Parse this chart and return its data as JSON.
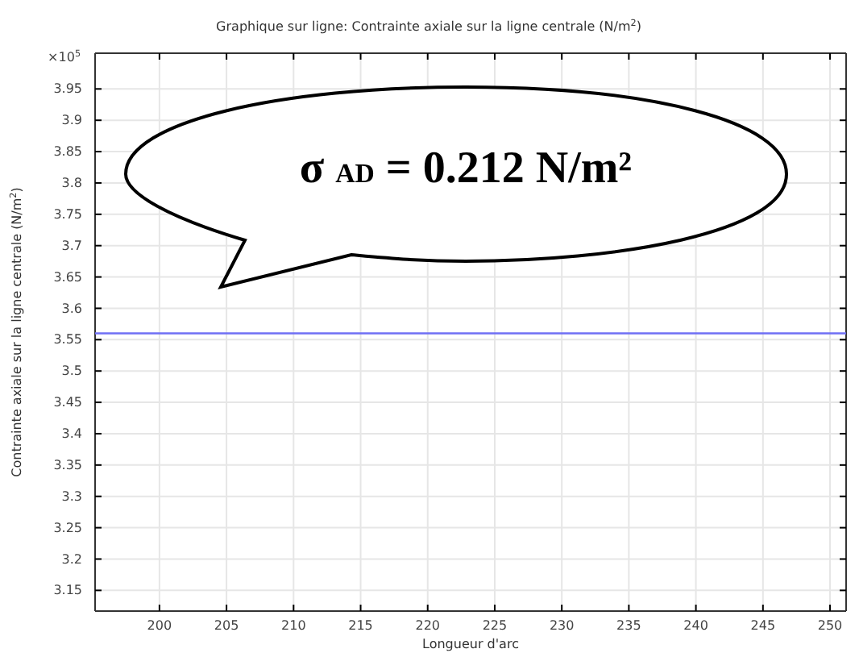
{
  "chart_data": {
    "type": "line",
    "title": "Graphique sur ligne: Contrainte axiale sur la ligne centrale (N/m$^{2}$)",
    "xlabel": "Longueur d'arc",
    "ylabel": "Contrainte axiale sur la ligne centrale (N/m$^{2}$)",
    "x": [
      195.2,
      251.2
    ],
    "series": [
      {
        "color": "#6f6ff5",
        "values": [
          3.56,
          3.56
        ]
      }
    ],
    "xlim": [
      195.2,
      251.2
    ],
    "xticks": [
      200,
      205,
      210,
      215,
      220,
      225,
      230,
      235,
      240,
      245,
      250
    ],
    "ylim": [
      3.117,
      4.007
    ],
    "yticks": [
      3.15,
      3.2,
      3.25,
      3.3,
      3.35,
      3.4,
      3.45,
      3.5,
      3.55,
      3.6,
      3.65,
      3.7,
      3.75,
      3.8,
      3.85,
      3.9,
      3.95
    ],
    "grid": true,
    "marker": "none",
    "line_style": "solid",
    "annotations": [
      "×10$^{5}$",
      "σ $_{AD}$ = 0.212 N/m²"
    ]
  }
}
